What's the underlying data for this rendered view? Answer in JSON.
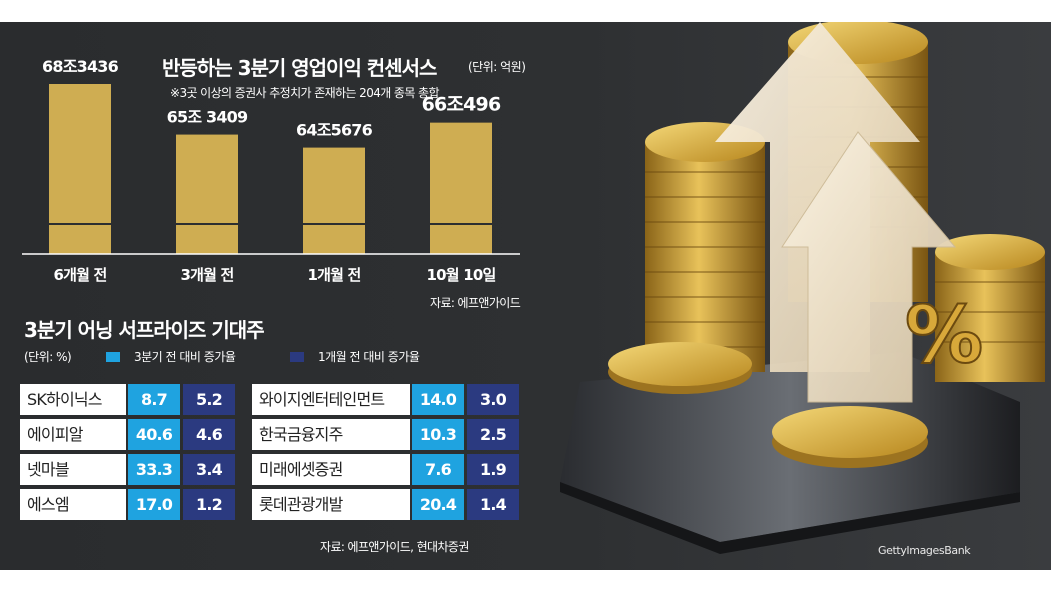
{
  "header": {
    "title": "반등하는 3분기 영업이익 컨센서스",
    "unit": "(단위: 억원)",
    "subtitle": "※3곳 이상의 증권사 추정치가 존재하는 204개 종목 총합",
    "source": "자료: 에프앤가이드"
  },
  "chart_data": {
    "type": "bar",
    "title": "반등하는 3분기 영업이익 컨센서스",
    "unit": "억원",
    "categories": [
      "6개월 전",
      "3개월 전",
      "1개월 전",
      "10월 10일"
    ],
    "values": [
      683436,
      653409,
      645676,
      660496
    ],
    "value_labels": [
      "68조3436",
      "65조 3409",
      "64조5676",
      "66조496"
    ],
    "bar_color": "#cfad52",
    "axis_line_color": "#ffffff"
  },
  "surprise": {
    "title": "3분기 어닝 서프라이즈 기대주",
    "unit": "(단위: %)",
    "legend": [
      {
        "label": "3분기 전 대비 증가율",
        "color": "#1fa3e0"
      },
      {
        "label": "1개월 전 대비 증가율",
        "color": "#2b3a80"
      }
    ],
    "left_rows": [
      {
        "name": "SK하이닉스",
        "q3": "8.7",
        "m1": "5.2"
      },
      {
        "name": "에이피알",
        "q3": "40.6",
        "m1": "4.6"
      },
      {
        "name": "넷마블",
        "q3": "33.3",
        "m1": "3.4"
      },
      {
        "name": "에스엠",
        "q3": "17.0",
        "m1": "1.2"
      }
    ],
    "right_rows": [
      {
        "name": "와이지엔터테인먼트",
        "q3": "14.0",
        "m1": "3.0"
      },
      {
        "name": "한국금융지주",
        "q3": "10.3",
        "m1": "2.5"
      },
      {
        "name": "미래에셋증권",
        "q3": "7.6",
        "m1": "1.9"
      },
      {
        "name": "롯데관광개발",
        "q3": "20.4",
        "m1": "1.4"
      }
    ],
    "source": "자료: 에프앤가이드, 현대차증권"
  },
  "photo": {
    "icon": "coins-arrows-percent-illustration",
    "credit": "GettyImagesBank"
  }
}
